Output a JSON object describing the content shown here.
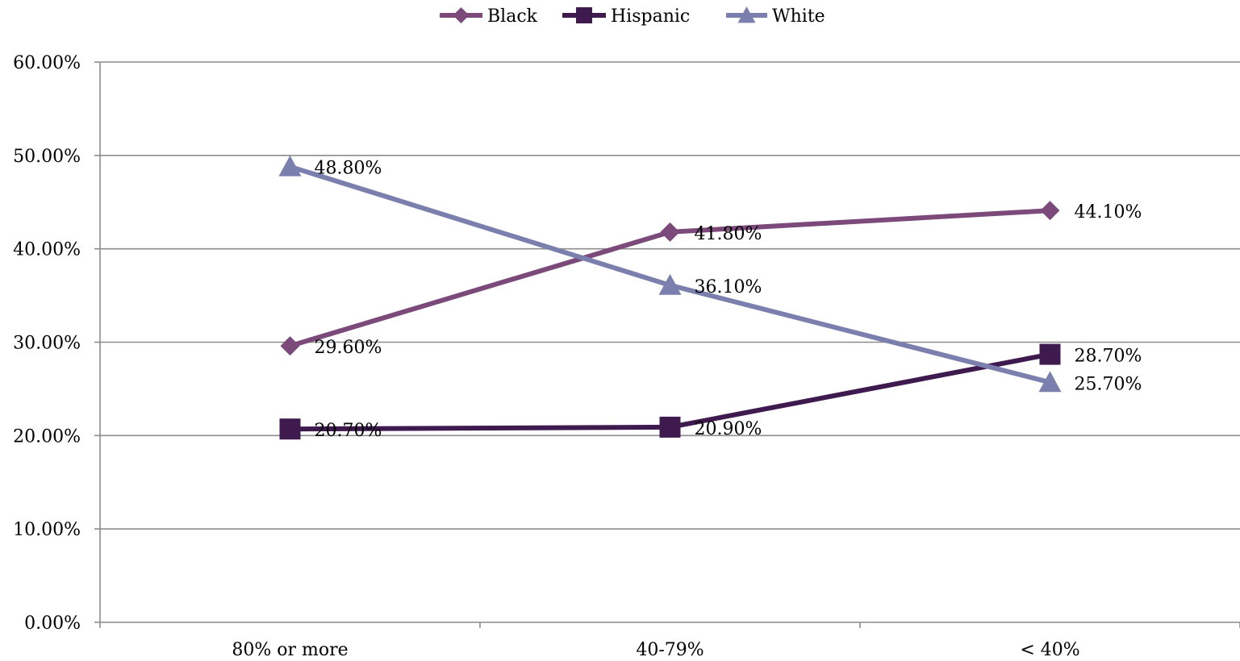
{
  "chart_data": {
    "type": "line",
    "categories": [
      "80% or more",
      "40-79%",
      "< 40%"
    ],
    "series": [
      {
        "name": "Black",
        "values": [
          29.6,
          41.8,
          44.1
        ],
        "labels": [
          "29.60%",
          "41.80%",
          "44.10%"
        ],
        "color": "#7b4a7a",
        "marker": "diamond"
      },
      {
        "name": "Hispanic",
        "values": [
          20.7,
          20.9,
          28.7
        ],
        "labels": [
          "20.70%",
          "20.90%",
          "28.70%"
        ],
        "color": "#3f1a4f",
        "marker": "square"
      },
      {
        "name": "White",
        "values": [
          48.8,
          36.1,
          25.7
        ],
        "labels": [
          "48.80%",
          "36.10%",
          "25.70%"
        ],
        "color": "#7b7fad",
        "marker": "triangle"
      }
    ],
    "y_ticks": [
      "0.00%",
      "10.00%",
      "20.00%",
      "30.00%",
      "40.00%",
      "50.00%",
      "60.00%"
    ],
    "ylim": [
      0,
      60
    ],
    "grid": true,
    "legend_position": "top-center",
    "data_labels": true
  }
}
